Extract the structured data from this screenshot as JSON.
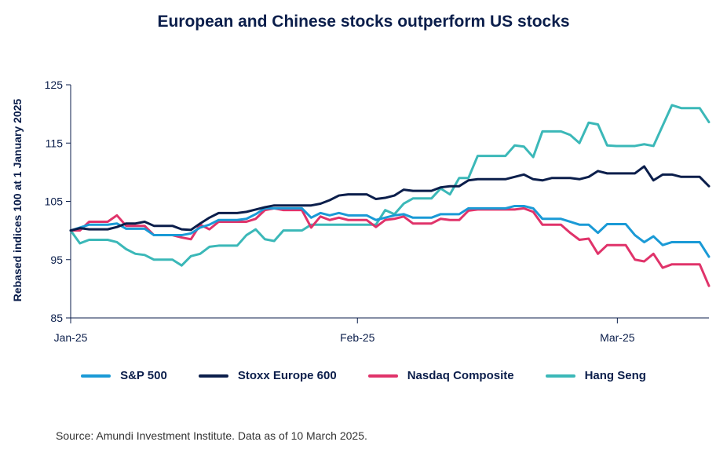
{
  "chart_data": {
    "type": "line",
    "title": "European and Chinese stocks outperform US stocks",
    "ylabel": "Rebased indices 100 at 1 January 2025",
    "xlabel": "",
    "ylim": [
      85,
      125
    ],
    "yticks": [
      85,
      95,
      105,
      115,
      125
    ],
    "xlim": [
      0,
      70
    ],
    "xticks": [
      {
        "label": "Jan-25",
        "x": 0
      },
      {
        "label": "Feb-25",
        "x": 31
      },
      {
        "label": "Mar-25",
        "x": 59
      }
    ],
    "series": [
      {
        "name": "S&P 500",
        "color": "#1a9ad6",
        "x": [
          0,
          1,
          2,
          3,
          4,
          5,
          6,
          7,
          8,
          9,
          10,
          11,
          12,
          13,
          14,
          15,
          16,
          17,
          18,
          19,
          20,
          21,
          22,
          23,
          24,
          25,
          26,
          27,
          28,
          29,
          30,
          31,
          32,
          33,
          34,
          35,
          36,
          37,
          38,
          39,
          40,
          41,
          42,
          43,
          44,
          45,
          46,
          47,
          48,
          49,
          50,
          51,
          52,
          53,
          54,
          55,
          56,
          57,
          58,
          59,
          60,
          61,
          62,
          63,
          64,
          65,
          66,
          67,
          68,
          69
        ],
        "values": [
          100,
          100.5,
          101,
          101,
          101,
          101.2,
          100.3,
          100.3,
          100.3,
          99.2,
          99.2,
          99.2,
          99.2,
          99.5,
          100.5,
          101,
          101.8,
          101.8,
          101.8,
          102,
          102.8,
          103.8,
          103.8,
          103.8,
          103.8,
          103.8,
          102.2,
          103,
          102.6,
          103,
          102.6,
          102.6,
          102.6,
          101.8,
          102.2,
          102.6,
          102.8,
          102.2,
          102.2,
          102.2,
          102.8,
          102.8,
          102.8,
          103.8,
          103.8,
          103.8,
          103.8,
          103.8,
          104.2,
          104.2,
          103.8,
          102,
          102,
          102,
          101.5,
          101,
          101,
          99.6,
          101.1,
          101.1,
          101.1,
          99.2,
          98,
          99,
          97.5,
          98,
          98,
          98,
          98,
          95.5
        ]
      },
      {
        "name": "Stoxx Europe 600",
        "color": "#0b1e4b",
        "x": [
          0,
          1,
          2,
          3,
          4,
          5,
          6,
          7,
          8,
          9,
          10,
          11,
          12,
          13,
          14,
          15,
          16,
          17,
          18,
          19,
          20,
          21,
          22,
          23,
          24,
          25,
          26,
          27,
          28,
          29,
          30,
          31,
          32,
          33,
          34,
          35,
          36,
          37,
          38,
          39,
          40,
          41,
          42,
          43,
          44,
          45,
          46,
          47,
          48,
          49,
          50,
          51,
          52,
          53,
          54,
          55,
          56,
          57,
          58,
          59,
          60,
          61,
          62,
          63,
          64,
          65,
          66,
          67,
          68,
          69
        ],
        "values": [
          100,
          100.4,
          100.2,
          100.2,
          100.2,
          100.6,
          101.2,
          101.2,
          101.5,
          100.8,
          100.8,
          100.8,
          100.2,
          100.1,
          101.2,
          102.2,
          103,
          103,
          103,
          103.2,
          103.6,
          104,
          104.3,
          104.3,
          104.3,
          104.3,
          104.3,
          104.6,
          105.2,
          106,
          106.2,
          106.2,
          106.2,
          105.4,
          105.6,
          106,
          107,
          106.8,
          106.8,
          106.8,
          107.4,
          107.6,
          107.6,
          108.6,
          108.8,
          108.8,
          108.8,
          108.8,
          109.2,
          109.6,
          108.8,
          108.6,
          109,
          109,
          109,
          108.8,
          109.2,
          110.2,
          109.8,
          109.8,
          109.8,
          109.8,
          111,
          108.6,
          109.6,
          109.6,
          109.2,
          109.2,
          109.2,
          107.6
        ]
      },
      {
        "name": "Nasdaq Composite",
        "color": "#e0336a",
        "x": [
          0,
          1,
          2,
          3,
          4,
          5,
          6,
          7,
          8,
          9,
          10,
          11,
          12,
          13,
          14,
          15,
          16,
          17,
          18,
          19,
          20,
          21,
          22,
          23,
          24,
          25,
          26,
          27,
          28,
          29,
          30,
          31,
          32,
          33,
          34,
          35,
          36,
          37,
          38,
          39,
          40,
          41,
          42,
          43,
          44,
          45,
          46,
          47,
          48,
          49,
          50,
          51,
          52,
          53,
          54,
          55,
          56,
          57,
          58,
          59,
          60,
          61,
          62,
          63,
          64,
          65,
          66,
          67,
          68,
          69
        ],
        "values": [
          100,
          100,
          101.5,
          101.5,
          101.5,
          102.6,
          100.8,
          100.8,
          100.8,
          99.2,
          99.2,
          99.2,
          98.8,
          98.5,
          101,
          100.2,
          101.5,
          101.5,
          101.5,
          101.5,
          102,
          103.5,
          103.8,
          103.5,
          103.5,
          103.5,
          100.5,
          102.4,
          101.8,
          102.2,
          101.8,
          101.8,
          101.8,
          100.6,
          101.8,
          102,
          102.4,
          101.2,
          101.2,
          101.2,
          102,
          101.8,
          101.8,
          103.4,
          103.6,
          103.6,
          103.6,
          103.6,
          103.6,
          103.8,
          103.2,
          101,
          101,
          101,
          99.6,
          98.4,
          98.6,
          96,
          97.5,
          97.5,
          97.5,
          95,
          94.7,
          96,
          93.6,
          94.2,
          94.2,
          94.2,
          94.2,
          90.5
        ]
      },
      {
        "name": "Hang Seng",
        "color": "#3bb8b8",
        "x": [
          0,
          1,
          2,
          3,
          4,
          5,
          6,
          7,
          8,
          9,
          10,
          11,
          12,
          13,
          14,
          15,
          16,
          17,
          18,
          19,
          20,
          21,
          22,
          23,
          24,
          25,
          26,
          27,
          28,
          29,
          30,
          31,
          32,
          33,
          34,
          35,
          36,
          37,
          38,
          39,
          40,
          41,
          42,
          43,
          44,
          45,
          46,
          47,
          48,
          49,
          50,
          51,
          52,
          53,
          54,
          55,
          56,
          57,
          58,
          59,
          60,
          61,
          62,
          63,
          64,
          65,
          66,
          67,
          68,
          69
        ],
        "values": [
          100,
          97.8,
          98.4,
          98.4,
          98.4,
          98,
          96.8,
          96,
          95.8,
          95,
          95,
          95,
          94,
          95.6,
          96,
          97.2,
          97.4,
          97.4,
          97.4,
          99.2,
          100.2,
          98.5,
          98.2,
          100,
          100,
          100,
          101,
          101,
          101,
          101,
          101,
          101,
          101,
          101,
          103.5,
          102.8,
          104.6,
          105.5,
          105.5,
          105.5,
          107.2,
          106.2,
          109,
          109,
          112.8,
          112.8,
          112.8,
          112.8,
          114.6,
          114.4,
          112.6,
          117,
          117,
          117,
          116.4,
          115,
          118.5,
          118.2,
          114.6,
          114.5,
          114.5,
          114.5,
          114.8,
          114.5,
          118,
          121.5,
          121,
          121,
          121,
          118.6
        ]
      }
    ],
    "legend": "bottom",
    "grid": false
  },
  "source": "Source: Amundi Investment Institute. Data as of 10 March 2025."
}
